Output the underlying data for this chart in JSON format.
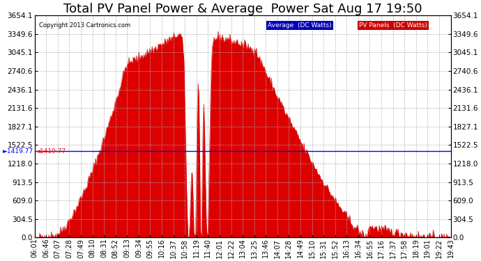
{
  "title": "Total PV Panel Power & Average  Power Sat Aug 17 19:50",
  "copyright": "Copyright 2013 Cartronics.com",
  "legend_labels": [
    "Average  (DC Watts)",
    "PV Panels  (DC Watts)"
  ],
  "legend_bg_colors": [
    "#0000bb",
    "#cc0000"
  ],
  "ymin": 0.0,
  "ymax": 3654.1,
  "ytick_values": [
    0.0,
    304.5,
    609.0,
    913.5,
    1218.0,
    1522.5,
    1827.1,
    2131.6,
    2436.1,
    2740.6,
    3045.1,
    3349.6,
    3654.1
  ],
  "avg_line": 1419.77,
  "avg_line_color": "#0000ff",
  "fill_color": "#dd0000",
  "line_color": "#cc0000",
  "background_color": "#ffffff",
  "grid_color": "#aaaaaa",
  "title_fontsize": 13,
  "tick_fontsize": 7.5,
  "xtick_labels": [
    "06:01",
    "06:46",
    "07:07",
    "07:28",
    "07:49",
    "08:10",
    "08:31",
    "08:52",
    "09:13",
    "09:34",
    "09:55",
    "10:16",
    "10:37",
    "10:58",
    "11:19",
    "11:40",
    "12:01",
    "12:22",
    "13:04",
    "13:25",
    "13:46",
    "14:07",
    "14:28",
    "14:49",
    "15:10",
    "15:31",
    "15:52",
    "16:13",
    "16:34",
    "16:55",
    "17:16",
    "17:37",
    "17:58",
    "18:19",
    "19:01",
    "19:22",
    "19:43"
  ]
}
